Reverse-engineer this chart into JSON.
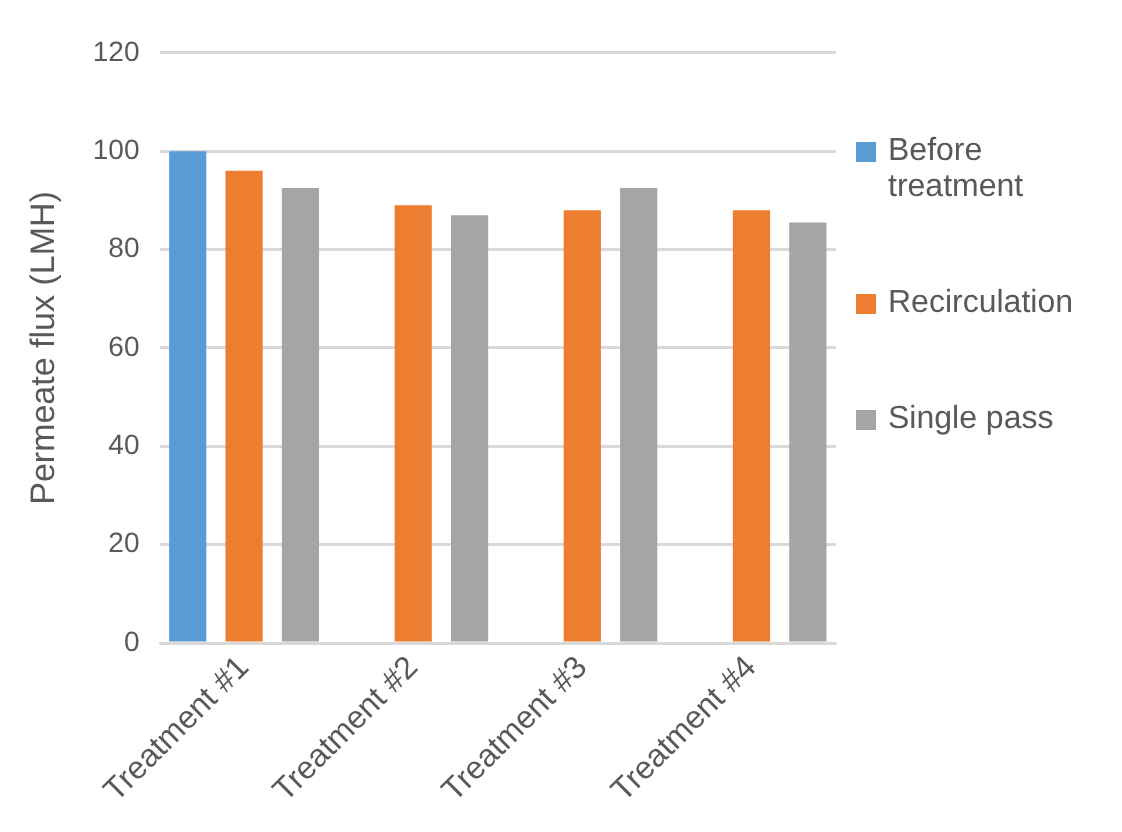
{
  "chart_data": {
    "type": "bar",
    "ylabel": "Permeate flux (LMH)",
    "categories": [
      "Treatment #1",
      "Treatment #2",
      "Treatment #3",
      "Treatment #4"
    ],
    "series": [
      {
        "name": "Before treatment",
        "color": "#5b9bd5",
        "values": [
          100,
          null,
          null,
          null
        ]
      },
      {
        "name": "Recirculation",
        "color": "#ed7d31",
        "values": [
          96,
          89,
          88,
          88
        ]
      },
      {
        "name": "Single pass",
        "color": "#a5a5a5",
        "values": [
          92.5,
          87,
          92.5,
          85.5
        ]
      }
    ],
    "ylim": [
      0,
      120
    ],
    "yticks": [
      0,
      20,
      40,
      60,
      80,
      100,
      120
    ],
    "grid": "y",
    "legend": "right"
  }
}
